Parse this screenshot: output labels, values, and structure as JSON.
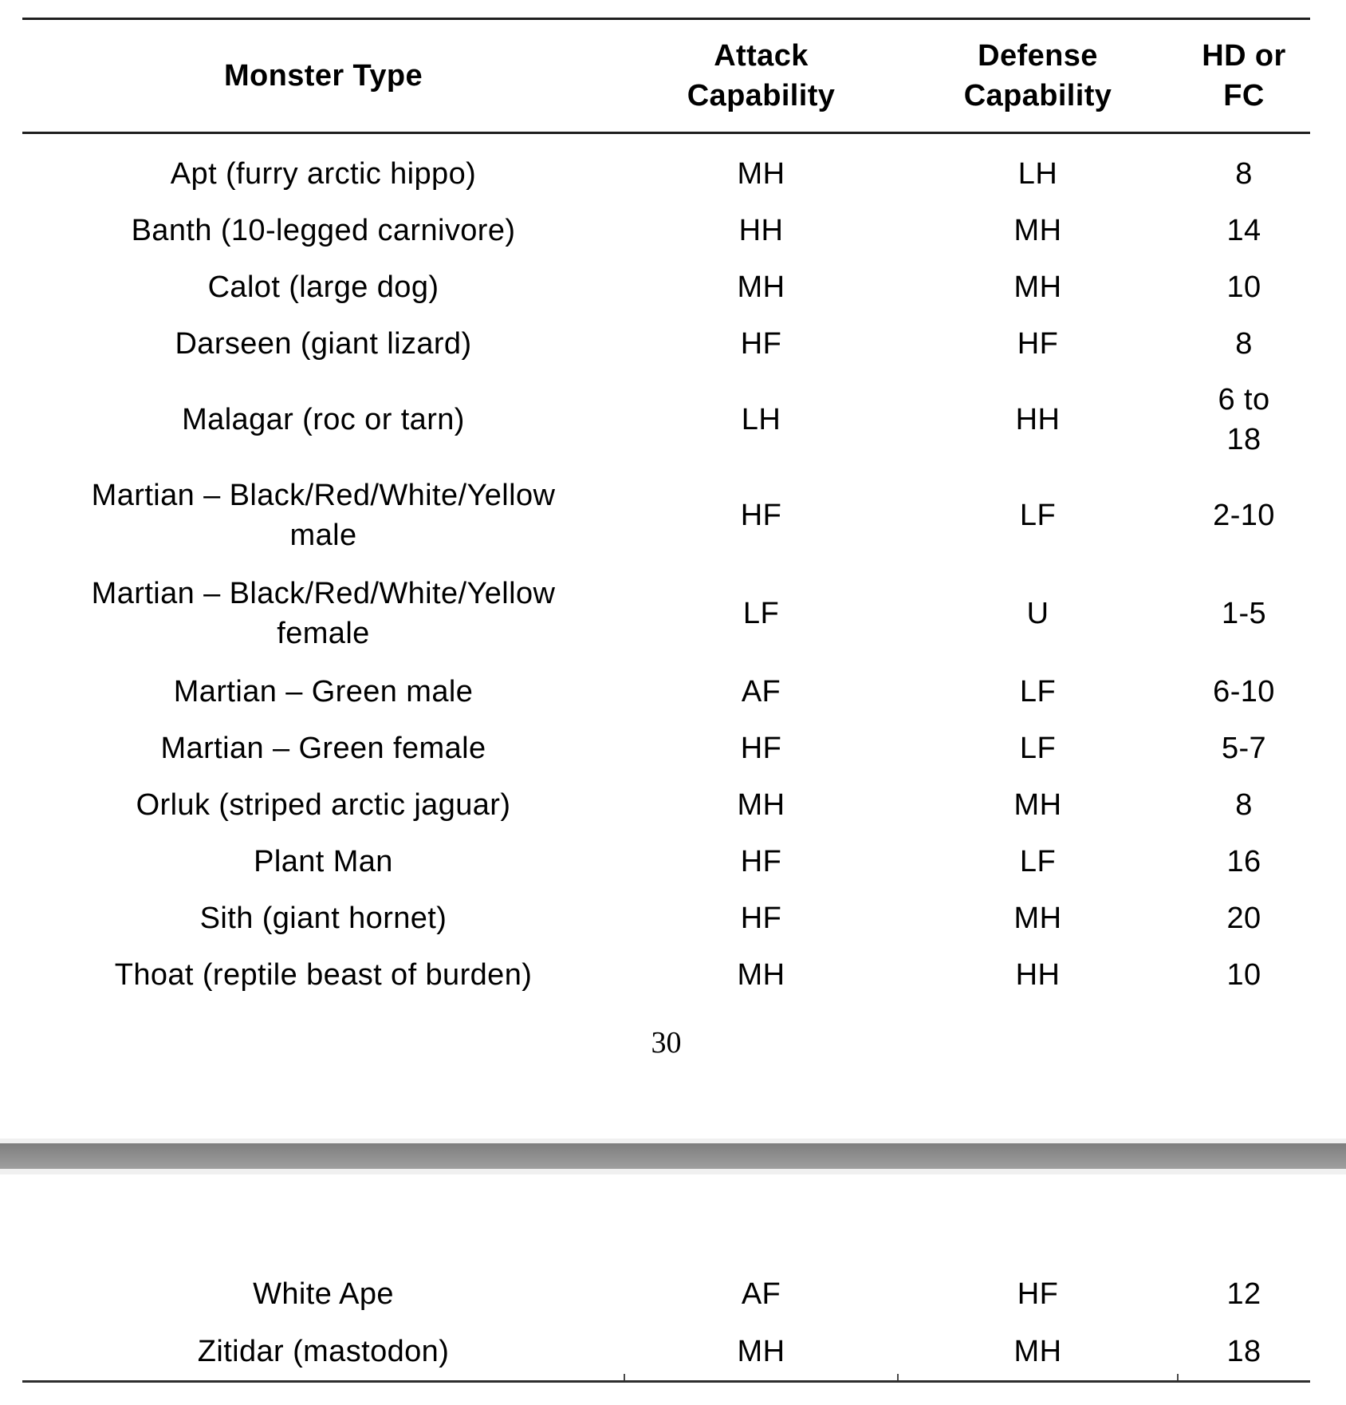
{
  "table": {
    "headers": {
      "monster": {
        "line1": "Monster Type",
        "line2": ""
      },
      "attack": {
        "line1": "Attack",
        "line2": "Capability"
      },
      "defense": {
        "line1": "Defense",
        "line2": "Capability"
      },
      "hd": {
        "line1": "HD or",
        "line2": "FC"
      }
    },
    "rows": [
      {
        "name": "Apt (furry arctic hippo)",
        "attack": "MH",
        "defense": "LH",
        "hd": "8"
      },
      {
        "name": "Banth (10-legged carnivore)",
        "attack": "HH",
        "defense": "MH",
        "hd": "14"
      },
      {
        "name": "Calot (large dog)",
        "attack": "MH",
        "defense": "MH",
        "hd": "10"
      },
      {
        "name": "Darseen (giant lizard)",
        "attack": "HF",
        "defense": "HF",
        "hd": "8"
      },
      {
        "name": "Malagar (roc or tarn)",
        "attack": "LH",
        "defense": "HH",
        "hd": "6 to",
        "hd2": "18"
      },
      {
        "name": "Martian – Black/Red/White/Yellow",
        "name2": "male",
        "attack": "HF",
        "defense": "LF",
        "hd": "2-10"
      },
      {
        "name": "Martian – Black/Red/White/Yellow",
        "name2": "female",
        "attack": "LF",
        "defense": "U",
        "hd": "1-5"
      },
      {
        "name": "Martian – Green male",
        "attack": "AF",
        "defense": "LF",
        "hd": "6-10"
      },
      {
        "name": "Martian – Green female",
        "attack": "HF",
        "defense": "LF",
        "hd": "5-7"
      },
      {
        "name": "Orluk (striped arctic jaguar)",
        "attack": "MH",
        "defense": "MH",
        "hd": "8"
      },
      {
        "name": "Plant Man",
        "attack": "HF",
        "defense": "LF",
        "hd": "16"
      },
      {
        "name": "Sith (giant hornet)",
        "attack": "HF",
        "defense": "MH",
        "hd": "20"
      },
      {
        "name": "Thoat (reptile beast of burden)",
        "attack": "MH",
        "defense": "HH",
        "hd": "10"
      }
    ],
    "continued_rows": [
      {
        "name": "White Ape",
        "attack": "AF",
        "defense": "HF",
        "hd": "12"
      },
      {
        "name": "Zitidar (mastodon)",
        "attack": "MH",
        "defense": "MH",
        "hd": "18"
      }
    ]
  },
  "page_number": "30",
  "colors": {
    "text": "#000000",
    "table_rule": "#1f1f1f",
    "page_gap_bar": "#8d8d8d",
    "page_gap_background": "#f0f0f0"
  }
}
